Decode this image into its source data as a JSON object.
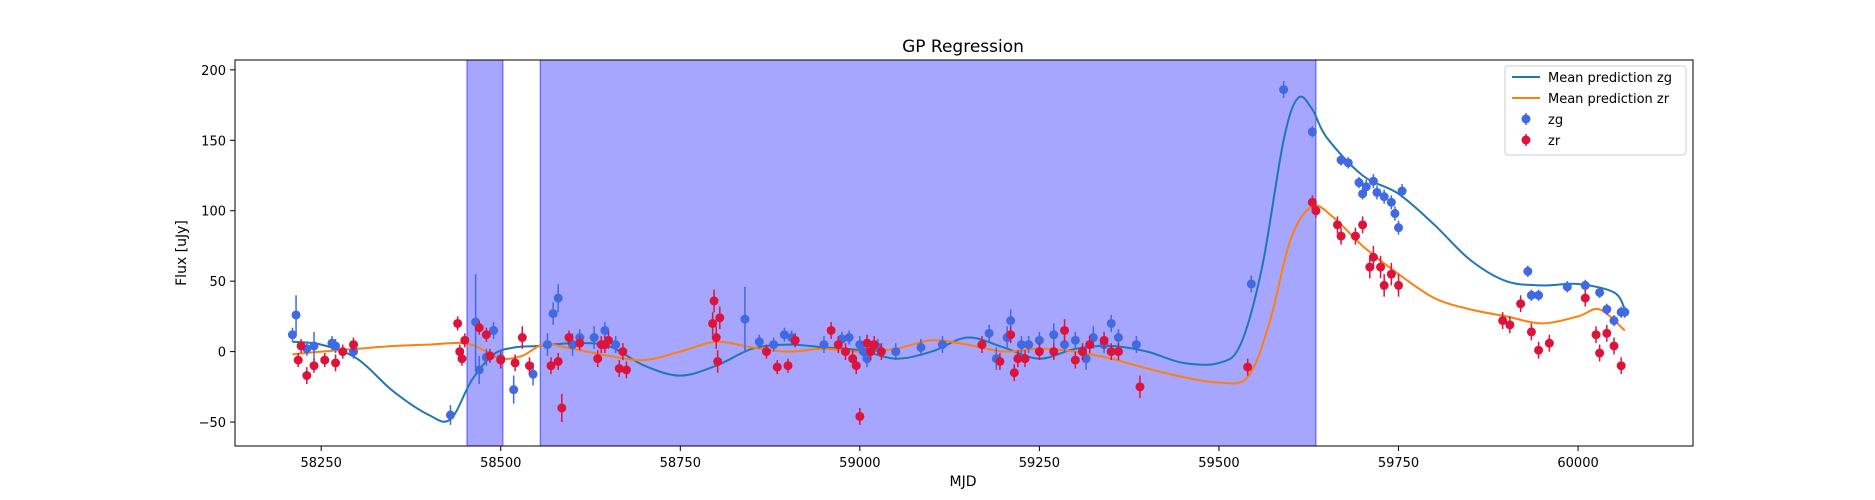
{
  "chart_data": {
    "type": "scatter",
    "title": "GP Regression",
    "xlabel": "MJD",
    "ylabel": "Flux [uJy]",
    "xlim": [
      58130,
      60160
    ],
    "ylim": [
      -67,
      207
    ],
    "x_ticks": [
      58250,
      58500,
      58750,
      59000,
      59250,
      59500,
      59750,
      60000
    ],
    "y_ticks": [
      -50,
      0,
      50,
      100,
      150,
      200
    ],
    "grid": false,
    "legend_position": "top-right",
    "shaded_regions": [
      {
        "x0": 58453,
        "x1": 58503,
        "color": "#0000ff",
        "opacity": 0.35
      },
      {
        "x0": 58555,
        "x1": 59635,
        "color": "#0000ff",
        "opacity": 0.35
      }
    ],
    "series": [
      {
        "name": "Mean prediction zg",
        "kind": "line",
        "color": "#1f77b4",
        "x": [
          58210,
          58250,
          58300,
          58350,
          58400,
          58430,
          58460,
          58490,
          58520,
          58550,
          58600,
          58650,
          58700,
          58750,
          58800,
          58850,
          58900,
          58950,
          59000,
          59050,
          59100,
          59150,
          59200,
          59250,
          59300,
          59350,
          59400,
          59450,
          59500,
          59530,
          59560,
          59590,
          59610,
          59630,
          59650,
          59700,
          59750,
          59800,
          59850,
          59900,
          59950,
          60000,
          60050,
          60065
        ],
        "y": [
          7,
          5,
          -5,
          -28,
          -45,
          -48,
          -20,
          -2,
          3,
          4,
          6,
          4,
          -10,
          -17,
          -10,
          2,
          5,
          3,
          1,
          -5,
          0,
          10,
          3,
          -5,
          2,
          4,
          0,
          -8,
          -8,
          5,
          60,
          150,
          180,
          172,
          152,
          125,
          112,
          90,
          65,
          50,
          47,
          48,
          42,
          30
        ]
      },
      {
        "name": "Mean prediction zr",
        "kind": "line",
        "color": "#ff7f0e",
        "x": [
          58210,
          58250,
          58300,
          58350,
          58400,
          58450,
          58480,
          58500,
          58530,
          58560,
          58600,
          58650,
          58700,
          58750,
          58800,
          58850,
          58900,
          58950,
          59000,
          59050,
          59100,
          59150,
          59200,
          59250,
          59300,
          59350,
          59400,
          59450,
          59500,
          59540,
          59570,
          59600,
          59630,
          59660,
          59700,
          59750,
          59800,
          59850,
          59900,
          59950,
          60000,
          60030,
          60065
        ],
        "y": [
          -2,
          0,
          2,
          4,
          5,
          6,
          0,
          -5,
          -3,
          5,
          2,
          -3,
          -6,
          0,
          7,
          3,
          0,
          2,
          0,
          2,
          8,
          5,
          0,
          2,
          0,
          -5,
          -12,
          -18,
          -22,
          -18,
          20,
          80,
          103,
          95,
          75,
          55,
          38,
          30,
          25,
          20,
          25,
          30,
          15
        ]
      },
      {
        "name": "zg",
        "kind": "errorbar",
        "color": "#4169e1",
        "x": [
          58210,
          58215,
          58230,
          58240,
          58265,
          58270,
          58295,
          58430,
          58465,
          58470,
          58480,
          58490,
          58500,
          58518,
          58545,
          58565,
          58573,
          58580,
          58600,
          58610,
          58630,
          58645,
          58660,
          58840,
          58860,
          58880,
          58895,
          58905,
          58950,
          58975,
          58985,
          59000,
          59005,
          59010,
          59025,
          59050,
          59085,
          59115,
          59180,
          59190,
          59205,
          59210,
          59225,
          59235,
          59250,
          59270,
          59285,
          59300,
          59315,
          59325,
          59340,
          59350,
          59360,
          59385,
          59545,
          59590,
          59630,
          59670,
          59680,
          59695,
          59700,
          59705,
          59715,
          59720,
          59730,
          59740,
          59745,
          59750,
          59755,
          59930,
          59935,
          59945,
          59985,
          60010,
          60030,
          60040,
          60050,
          60060,
          60065
        ],
        "y": [
          12,
          26,
          2,
          4,
          6,
          4,
          0,
          -45,
          21,
          -13,
          -4,
          15,
          -5,
          -27,
          -16,
          5,
          27,
          38,
          5,
          10,
          10,
          15,
          5,
          23,
          7,
          5,
          12,
          10,
          5,
          9,
          10,
          5,
          0,
          -5,
          3,
          0,
          3,
          5,
          13,
          -5,
          10,
          22,
          5,
          5,
          8,
          12,
          5,
          8,
          -5,
          10,
          5,
          20,
          10,
          5,
          48,
          186,
          156,
          136,
          134,
          120,
          112,
          117,
          121,
          113,
          110,
          106,
          98,
          88,
          114,
          57,
          40,
          40,
          46,
          47,
          42,
          30,
          22,
          28,
          28
        ],
        "yerr": [
          5,
          14,
          5,
          10,
          5,
          5,
          5,
          7,
          34,
          10,
          6,
          6,
          6,
          10,
          8,
          8,
          8,
          10,
          8,
          6,
          8,
          6,
          6,
          23,
          5,
          5,
          5,
          5,
          6,
          5,
          5,
          6,
          6,
          6,
          6,
          6,
          6,
          6,
          6,
          8,
          8,
          8,
          6,
          6,
          6,
          8,
          6,
          6,
          8,
          8,
          6,
          6,
          6,
          6,
          6,
          6,
          4,
          4,
          4,
          4,
          4,
          5,
          5,
          5,
          5,
          5,
          5,
          5,
          5,
          4,
          4,
          4,
          4,
          4,
          4,
          4,
          4,
          4,
          4
        ]
      },
      {
        "name": "zr",
        "kind": "errorbar",
        "color": "#dc143c",
        "x": [
          58218,
          58222,
          58230,
          58240,
          58255,
          58270,
          58280,
          58295,
          58440,
          58443,
          58446,
          58450,
          58470,
          58480,
          58485,
          58500,
          58520,
          58530,
          58540,
          58570,
          58580,
          58585,
          58595,
          58610,
          58635,
          58640,
          58645,
          58650,
          58665,
          58670,
          58675,
          58795,
          58797,
          58800,
          58802,
          58805,
          58870,
          58885,
          58900,
          58910,
          58960,
          58970,
          58980,
          58990,
          58995,
          59000,
          59010,
          59015,
          59020,
          59030,
          59170,
          59195,
          59210,
          59215,
          59220,
          59230,
          59250,
          59270,
          59285,
          59300,
          59310,
          59320,
          59340,
          59350,
          59360,
          59390,
          59540,
          59630,
          59635,
          59665,
          59670,
          59690,
          59700,
          59710,
          59715,
          59725,
          59730,
          59740,
          59750,
          59895,
          59905,
          59920,
          59935,
          59945,
          59960,
          60010,
          60025,
          60030,
          60040,
          60050,
          60060
        ],
        "y": [
          -6,
          4,
          -17,
          -10,
          -6,
          -8,
          0,
          5,
          20,
          0,
          -5,
          8,
          17,
          12,
          -3,
          -6,
          -8,
          10,
          -10,
          -10,
          -7,
          -40,
          10,
          6,
          -5,
          5,
          5,
          8,
          -12,
          0,
          -13,
          20,
          36,
          10,
          -7,
          24,
          0,
          -11,
          -10,
          8,
          15,
          5,
          0,
          -5,
          -10,
          -46,
          6,
          0,
          5,
          0,
          5,
          -7,
          12,
          -15,
          -5,
          -5,
          0,
          0,
          15,
          -6,
          0,
          5,
          8,
          0,
          0,
          -25,
          -11,
          106,
          100,
          90,
          82,
          82,
          90,
          60,
          67,
          60,
          47,
          55,
          47,
          22,
          19,
          34,
          14,
          1,
          6,
          38,
          12,
          -1,
          13,
          4,
          -10
        ],
        "yerr": [
          5,
          5,
          6,
          5,
          5,
          6,
          5,
          5,
          5,
          5,
          5,
          5,
          5,
          5,
          5,
          6,
          6,
          8,
          6,
          6,
          6,
          10,
          5,
          5,
          6,
          6,
          6,
          6,
          6,
          6,
          6,
          8,
          8,
          8,
          8,
          8,
          5,
          5,
          5,
          5,
          6,
          6,
          6,
          6,
          6,
          6,
          6,
          6,
          6,
          6,
          6,
          6,
          6,
          6,
          6,
          6,
          6,
          6,
          8,
          6,
          6,
          6,
          6,
          6,
          6,
          8,
          6,
          5,
          5,
          6,
          6,
          6,
          6,
          8,
          8,
          8,
          8,
          8,
          8,
          6,
          6,
          6,
          6,
          6,
          6,
          6,
          6,
          6,
          6,
          6,
          6
        ]
      }
    ]
  }
}
